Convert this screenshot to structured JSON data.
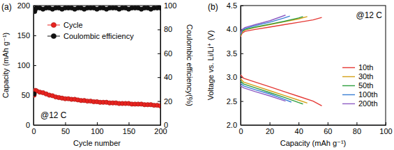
{
  "chart_data": [
    {
      "type": "scatter",
      "title": "(a)",
      "annotation": "@12 C",
      "x_label": "Cycle number",
      "y_label": "Capacity (mAh g⁻¹)",
      "y2_label": "Coulombic efficiency(%)",
      "xlim": [
        0,
        200
      ],
      "xticks": [
        0,
        50,
        100,
        150,
        200
      ],
      "ylim": [
        0,
        200
      ],
      "yticks": [
        0,
        50,
        100,
        150,
        200
      ],
      "y2lim": [
        0,
        100
      ],
      "y2ticks": [
        0,
        20,
        40,
        60,
        80,
        100
      ],
      "grid": false,
      "legend": "top",
      "x": [
        1,
        2,
        3,
        5,
        10,
        15,
        20,
        25,
        30,
        35,
        40,
        45,
        50,
        55,
        60,
        65,
        70,
        75,
        80,
        85,
        90,
        95,
        100,
        105,
        110,
        115,
        120,
        125,
        130,
        135,
        140,
        145,
        150,
        155,
        160,
        165,
        170,
        175,
        180,
        185,
        190,
        195,
        200
      ],
      "series": [
        {
          "name": "Cycle",
          "color": "#e8231f",
          "marker": "circle",
          "values": [
            50,
            56,
            58,
            57,
            55,
            54,
            52,
            50,
            49,
            47,
            46,
            45,
            44,
            44,
            43,
            43,
            42,
            41,
            41,
            40,
            40,
            39,
            39,
            38,
            38,
            38,
            37,
            37,
            37,
            36,
            36,
            36,
            36,
            35,
            35,
            35,
            35,
            34,
            34,
            34,
            33,
            33,
            32
          ]
        },
        {
          "name": "Coulombic efficiency",
          "color": "#111111",
          "marker": "circle",
          "axis": "y2",
          "values": [
            26,
            95,
            97,
            98,
            98,
            97,
            98,
            98,
            97,
            98,
            98,
            97,
            98,
            98,
            98,
            97,
            98,
            98,
            97,
            98,
            98,
            98,
            97,
            98,
            98,
            97,
            98,
            98,
            98,
            97,
            98,
            98,
            97,
            98,
            98,
            98,
            97,
            98,
            98,
            97,
            98,
            98,
            98
          ]
        }
      ]
    },
    {
      "type": "line",
      "title": "(b)",
      "annotation": "@12 C",
      "x_label": "Capacity (mAh g⁻¹)",
      "y_label": "Voltage vs. Li/Li⁺ (V)",
      "xlim": [
        0,
        100
      ],
      "xticks": [
        0,
        20,
        40,
        60,
        80,
        100
      ],
      "ylim": [
        2.0,
        4.5
      ],
      "yticks": [
        {
          "value": 2.0,
          "label": "2.0"
        },
        {
          "value": 2.5,
          "label": "2.5"
        },
        {
          "value": 3.0,
          "label": "3.0"
        },
        {
          "value": 3.5,
          "label": "3.5"
        },
        {
          "value": 4.0,
          "label": "4.0"
        },
        {
          "value": 4.5,
          "label": "4.5"
        }
      ],
      "grid": false,
      "legend": "right",
      "series": [
        {
          "name": "10th",
          "color": "#e53935",
          "x": [
            0,
            1,
            3,
            10,
            20,
            30,
            40,
            50,
            56,
            null,
            0,
            2,
            10,
            20,
            30,
            40,
            50,
            56
          ],
          "values": [
            3.85,
            3.92,
            3.96,
            4.0,
            4.05,
            4.1,
            4.15,
            4.2,
            4.25,
            null,
            3.05,
            2.98,
            2.9,
            2.8,
            2.7,
            2.6,
            2.5,
            2.4
          ]
        },
        {
          "name": "30th",
          "color": "#d4a017",
          "x": [
            0,
            1,
            3,
            10,
            20,
            30,
            40,
            46,
            null,
            0,
            2,
            10,
            20,
            30,
            40,
            46
          ],
          "values": [
            3.87,
            3.95,
            3.99,
            4.04,
            4.1,
            4.16,
            4.22,
            4.27,
            null,
            2.97,
            2.9,
            2.82,
            2.72,
            2.62,
            2.52,
            2.46
          ]
        },
        {
          "name": "50th",
          "color": "#2e9e3e",
          "x": [
            0,
            1,
            3,
            10,
            20,
            30,
            40,
            43,
            null,
            0,
            2,
            10,
            20,
            30,
            40,
            43
          ],
          "values": [
            3.88,
            3.96,
            4.0,
            4.05,
            4.11,
            4.17,
            4.24,
            4.27,
            null,
            2.92,
            2.86,
            2.78,
            2.68,
            2.58,
            2.47,
            2.44
          ]
        },
        {
          "name": "100th",
          "color": "#3a7fd5",
          "x": [
            0,
            1,
            3,
            10,
            20,
            30,
            34,
            null,
            0,
            2,
            10,
            20,
            30,
            35
          ],
          "values": [
            3.9,
            3.98,
            4.02,
            4.08,
            4.15,
            4.24,
            4.28,
            null,
            2.87,
            2.82,
            2.74,
            2.65,
            2.54,
            2.48
          ]
        },
        {
          "name": "200th",
          "color": "#8e5cc4",
          "x": [
            0,
            1,
            3,
            10,
            20,
            31,
            null,
            0,
            2,
            10,
            20,
            31
          ],
          "values": [
            3.92,
            4.0,
            4.04,
            4.1,
            4.18,
            4.3,
            null,
            2.82,
            2.78,
            2.7,
            2.61,
            2.5
          ]
        }
      ]
    }
  ]
}
